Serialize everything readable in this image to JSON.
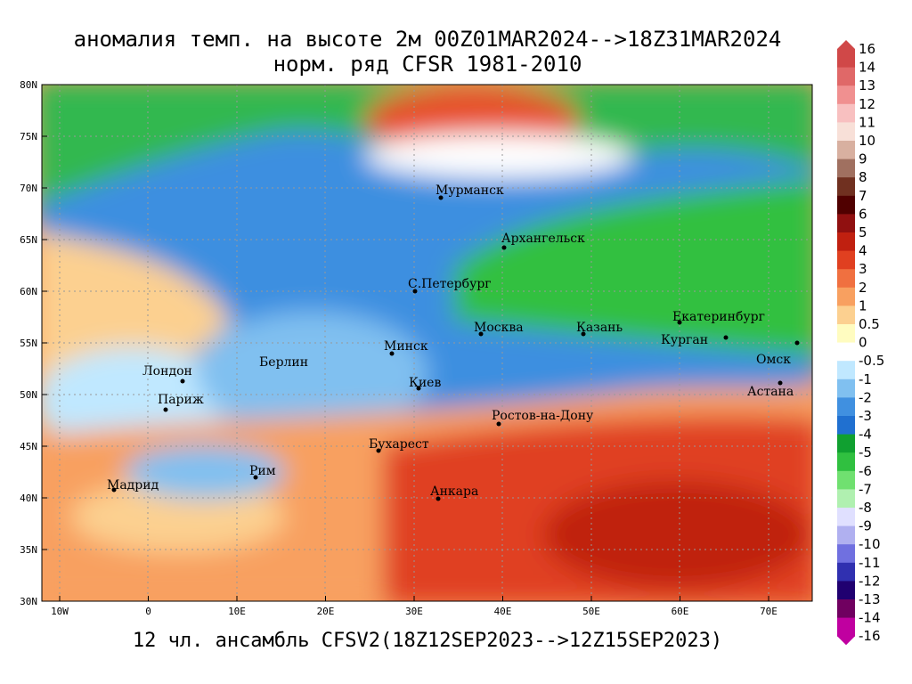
{
  "title": "аномалия темп. на высоте 2м 00Z01MAR2024-->18Z31MAR2024",
  "subtitle": "норм. ряд CFSR 1981-2010",
  "footer": "12 чл. ансамбль CFSV2(18Z12SEP2023-->12Z15SEP2023)",
  "lat_ticks": [
    "80N",
    "75N",
    "70N",
    "65N",
    "60N",
    "55N",
    "50N",
    "45N",
    "40N",
    "35N",
    "30N"
  ],
  "lon_ticks": [
    "10W",
    "0",
    "10E",
    "20E",
    "30E",
    "40E",
    "50E",
    "60E",
    "70E"
  ],
  "cities": [
    "Мурманск",
    "Архангельск",
    "С.Петербург",
    "Москва",
    "Казань",
    "Екатеринбург",
    "Курган",
    "Омск",
    "Астана",
    "Минск",
    "Берлин",
    "Лондон",
    "Париж",
    "Киев",
    "Ростов-на-Дону",
    "Бухарест",
    "Рим",
    "Мадрид",
    "Анкара"
  ],
  "colorbar": {
    "labels": [
      "16",
      "14",
      "13",
      "12",
      "11",
      "10",
      "9",
      "8",
      "7",
      "6",
      "5",
      "4",
      "3",
      "2",
      "1",
      "0.5",
      "0",
      "-0.5",
      "-1",
      "-2",
      "-3",
      "-4",
      "-5",
      "-6",
      "-7",
      "-8",
      "-9",
      "-10",
      "-11",
      "-12",
      "-13",
      "-14",
      "-16"
    ],
    "colors": [
      "#d04848",
      "#e06868",
      "#f09090",
      "#f8c0c0",
      "#f8e0d8",
      "#d8b0a0",
      "#a07060",
      "#703020",
      "#500000",
      "#901010",
      "#c02010",
      "#e04020",
      "#f07040",
      "#f8a060",
      "#fcd090",
      "#fffcc0",
      "#ffffff",
      "#c0e8ff",
      "#80c0f0",
      "#4090e0",
      "#2070d0",
      "#10a030",
      "#30c040",
      "#70e070",
      "#b0f0b0",
      "#e0e0ff",
      "#b0b0f0",
      "#7070e0",
      "#3030b0",
      "#200070",
      "#700060",
      "#c000a0"
    ]
  }
}
